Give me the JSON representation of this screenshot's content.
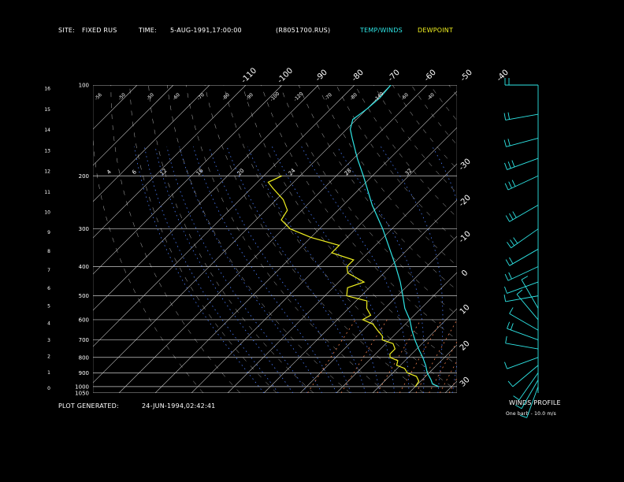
{
  "header": {
    "site_label": "SITE:",
    "site_value": "FIXED RUS",
    "time_label": "TIME:",
    "time_value": "5-AUG-1991,17:00:00",
    "file_value": "(R8051700.RUS)",
    "temp_winds_label": "TEMP/WINDS",
    "dewpoint_label": "DEWPOINT"
  },
  "footer": {
    "generated_label": "PLOT GENERATED:",
    "generated_value": "24-JUN-1994,02:42:41",
    "winds_profile_label": "WINDS PROFILE",
    "barb_note": "One barb - 10.0 m/s"
  },
  "colors": {
    "background": "#000000",
    "temperature": "#2ee6e6",
    "dewpoint": "#f0f020",
    "isobar": "#c8c8c8",
    "isotherm": "#c8c8c8",
    "dry_adiabat": "#ffffff",
    "moist_adiabat": "#4a7dff",
    "mixing_ratio": "#e87a4a",
    "wind": "#2ee6e6"
  },
  "chart_data": {
    "type": "line",
    "title": "",
    "skew_t": true,
    "pressure_axis": {
      "scale": "log",
      "range_hpa": [
        1050,
        100
      ],
      "labels": [
        "100",
        "200",
        "300",
        "400",
        "500",
        "600",
        "700",
        "800",
        "900",
        "1000",
        "1050"
      ]
    },
    "height_axis": {
      "unit": "km",
      "labels": [
        "0",
        "1",
        "2",
        "3",
        "4",
        "5",
        "6",
        "7",
        "8",
        "9",
        "10",
        "11",
        "12",
        "13",
        "14",
        "15",
        "16"
      ]
    },
    "isotherm_labels_top": [
      "-110",
      "-100",
      "-90",
      "-80",
      "-70",
      "-60",
      "-50",
      "-40"
    ],
    "isotherm_labels_right": [
      "-30",
      "-20",
      "-10",
      "0",
      "10",
      "20",
      "30"
    ],
    "moist_adiabat_labels": [
      "-56",
      "-50",
      "-50",
      "-60",
      "-70",
      "-80",
      "-90",
      "-100",
      "-120",
      "-70",
      "-80",
      "-140",
      "-60",
      "-40"
    ],
    "mixing_ratio_labels": [
      "4",
      "6",
      "12",
      "16",
      "20",
      "24",
      "28",
      "32"
    ],
    "series": [
      {
        "name": "TEMP/WINDS",
        "pressure_hpa": [
          1000,
          980,
          950,
          925,
          900,
          850,
          800,
          750,
          700,
          650,
          600,
          550,
          500,
          450,
          400,
          350,
          300,
          250,
          200,
          175,
          150,
          140,
          130,
          120,
          110,
          100
        ],
        "temperature_c": [
          26.5,
          24,
          22.5,
          21,
          19.5,
          17,
          14,
          10.5,
          7,
          3.5,
          0,
          -4.5,
          -8.5,
          -13,
          -18.5,
          -25,
          -32.5,
          -42,
          -52.5,
          -59,
          -66,
          -69,
          -71,
          -70,
          -69.5,
          -70
        ]
      },
      {
        "name": "DEWPOINT",
        "pressure_hpa": [
          1000,
          960,
          925,
          900,
          870,
          850,
          820,
          800,
          780,
          750,
          720,
          700,
          680,
          650,
          620,
          600,
          580,
          550,
          520,
          500,
          470,
          450,
          420,
          400,
          380,
          360,
          340,
          320,
          300,
          280,
          260,
          240,
          220,
          210,
          200
        ],
        "dewpoint_c": [
          20,
          19.5,
          17.5,
          14,
          12,
          9,
          8,
          5,
          4,
          4,
          2,
          -2,
          -3,
          -6,
          -9,
          -13,
          -12,
          -15,
          -17,
          -24,
          -26,
          -23,
          -30,
          -32,
          -32,
          -40,
          -40,
          -50,
          -58,
          -63,
          -64,
          -68,
          -74,
          -77,
          -75
        ]
      }
    ],
    "winds": {
      "unit": "m/s",
      "barb_value": 10.0,
      "profile": [
        {
          "pressure_hpa": 1000,
          "dir_deg": 200,
          "speed_ms": 6
        },
        {
          "pressure_hpa": 950,
          "dir_deg": 210,
          "speed_ms": 8
        },
        {
          "pressure_hpa": 900,
          "dir_deg": 215,
          "speed_ms": 10
        },
        {
          "pressure_hpa": 850,
          "dir_deg": 230,
          "speed_ms": 12
        },
        {
          "pressure_hpa": 800,
          "dir_deg": 250,
          "speed_ms": 10
        },
        {
          "pressure_hpa": 750,
          "dir_deg": 280,
          "speed_ms": 12
        },
        {
          "pressure_hpa": 700,
          "dir_deg": 290,
          "speed_ms": 15
        },
        {
          "pressure_hpa": 650,
          "dir_deg": 300,
          "speed_ms": 14
        },
        {
          "pressure_hpa": 600,
          "dir_deg": 320,
          "speed_ms": 12
        },
        {
          "pressure_hpa": 550,
          "dir_deg": 330,
          "speed_ms": 10
        },
        {
          "pressure_hpa": 500,
          "dir_deg": 260,
          "speed_ms": 12
        },
        {
          "pressure_hpa": 450,
          "dir_deg": 250,
          "speed_ms": 14
        },
        {
          "pressure_hpa": 400,
          "dir_deg": 245,
          "speed_ms": 18
        },
        {
          "pressure_hpa": 350,
          "dir_deg": 240,
          "speed_ms": 22
        },
        {
          "pressure_hpa": 300,
          "dir_deg": 235,
          "speed_ms": 25
        },
        {
          "pressure_hpa": 250,
          "dir_deg": 240,
          "speed_ms": 28
        },
        {
          "pressure_hpa": 200,
          "dir_deg": 245,
          "speed_ms": 30
        },
        {
          "pressure_hpa": 175,
          "dir_deg": 250,
          "speed_ms": 27
        },
        {
          "pressure_hpa": 150,
          "dir_deg": 255,
          "speed_ms": 24
        },
        {
          "pressure_hpa": 125,
          "dir_deg": 260,
          "speed_ms": 20
        },
        {
          "pressure_hpa": 100,
          "dir_deg": 270,
          "speed_ms": 15
        }
      ]
    }
  }
}
